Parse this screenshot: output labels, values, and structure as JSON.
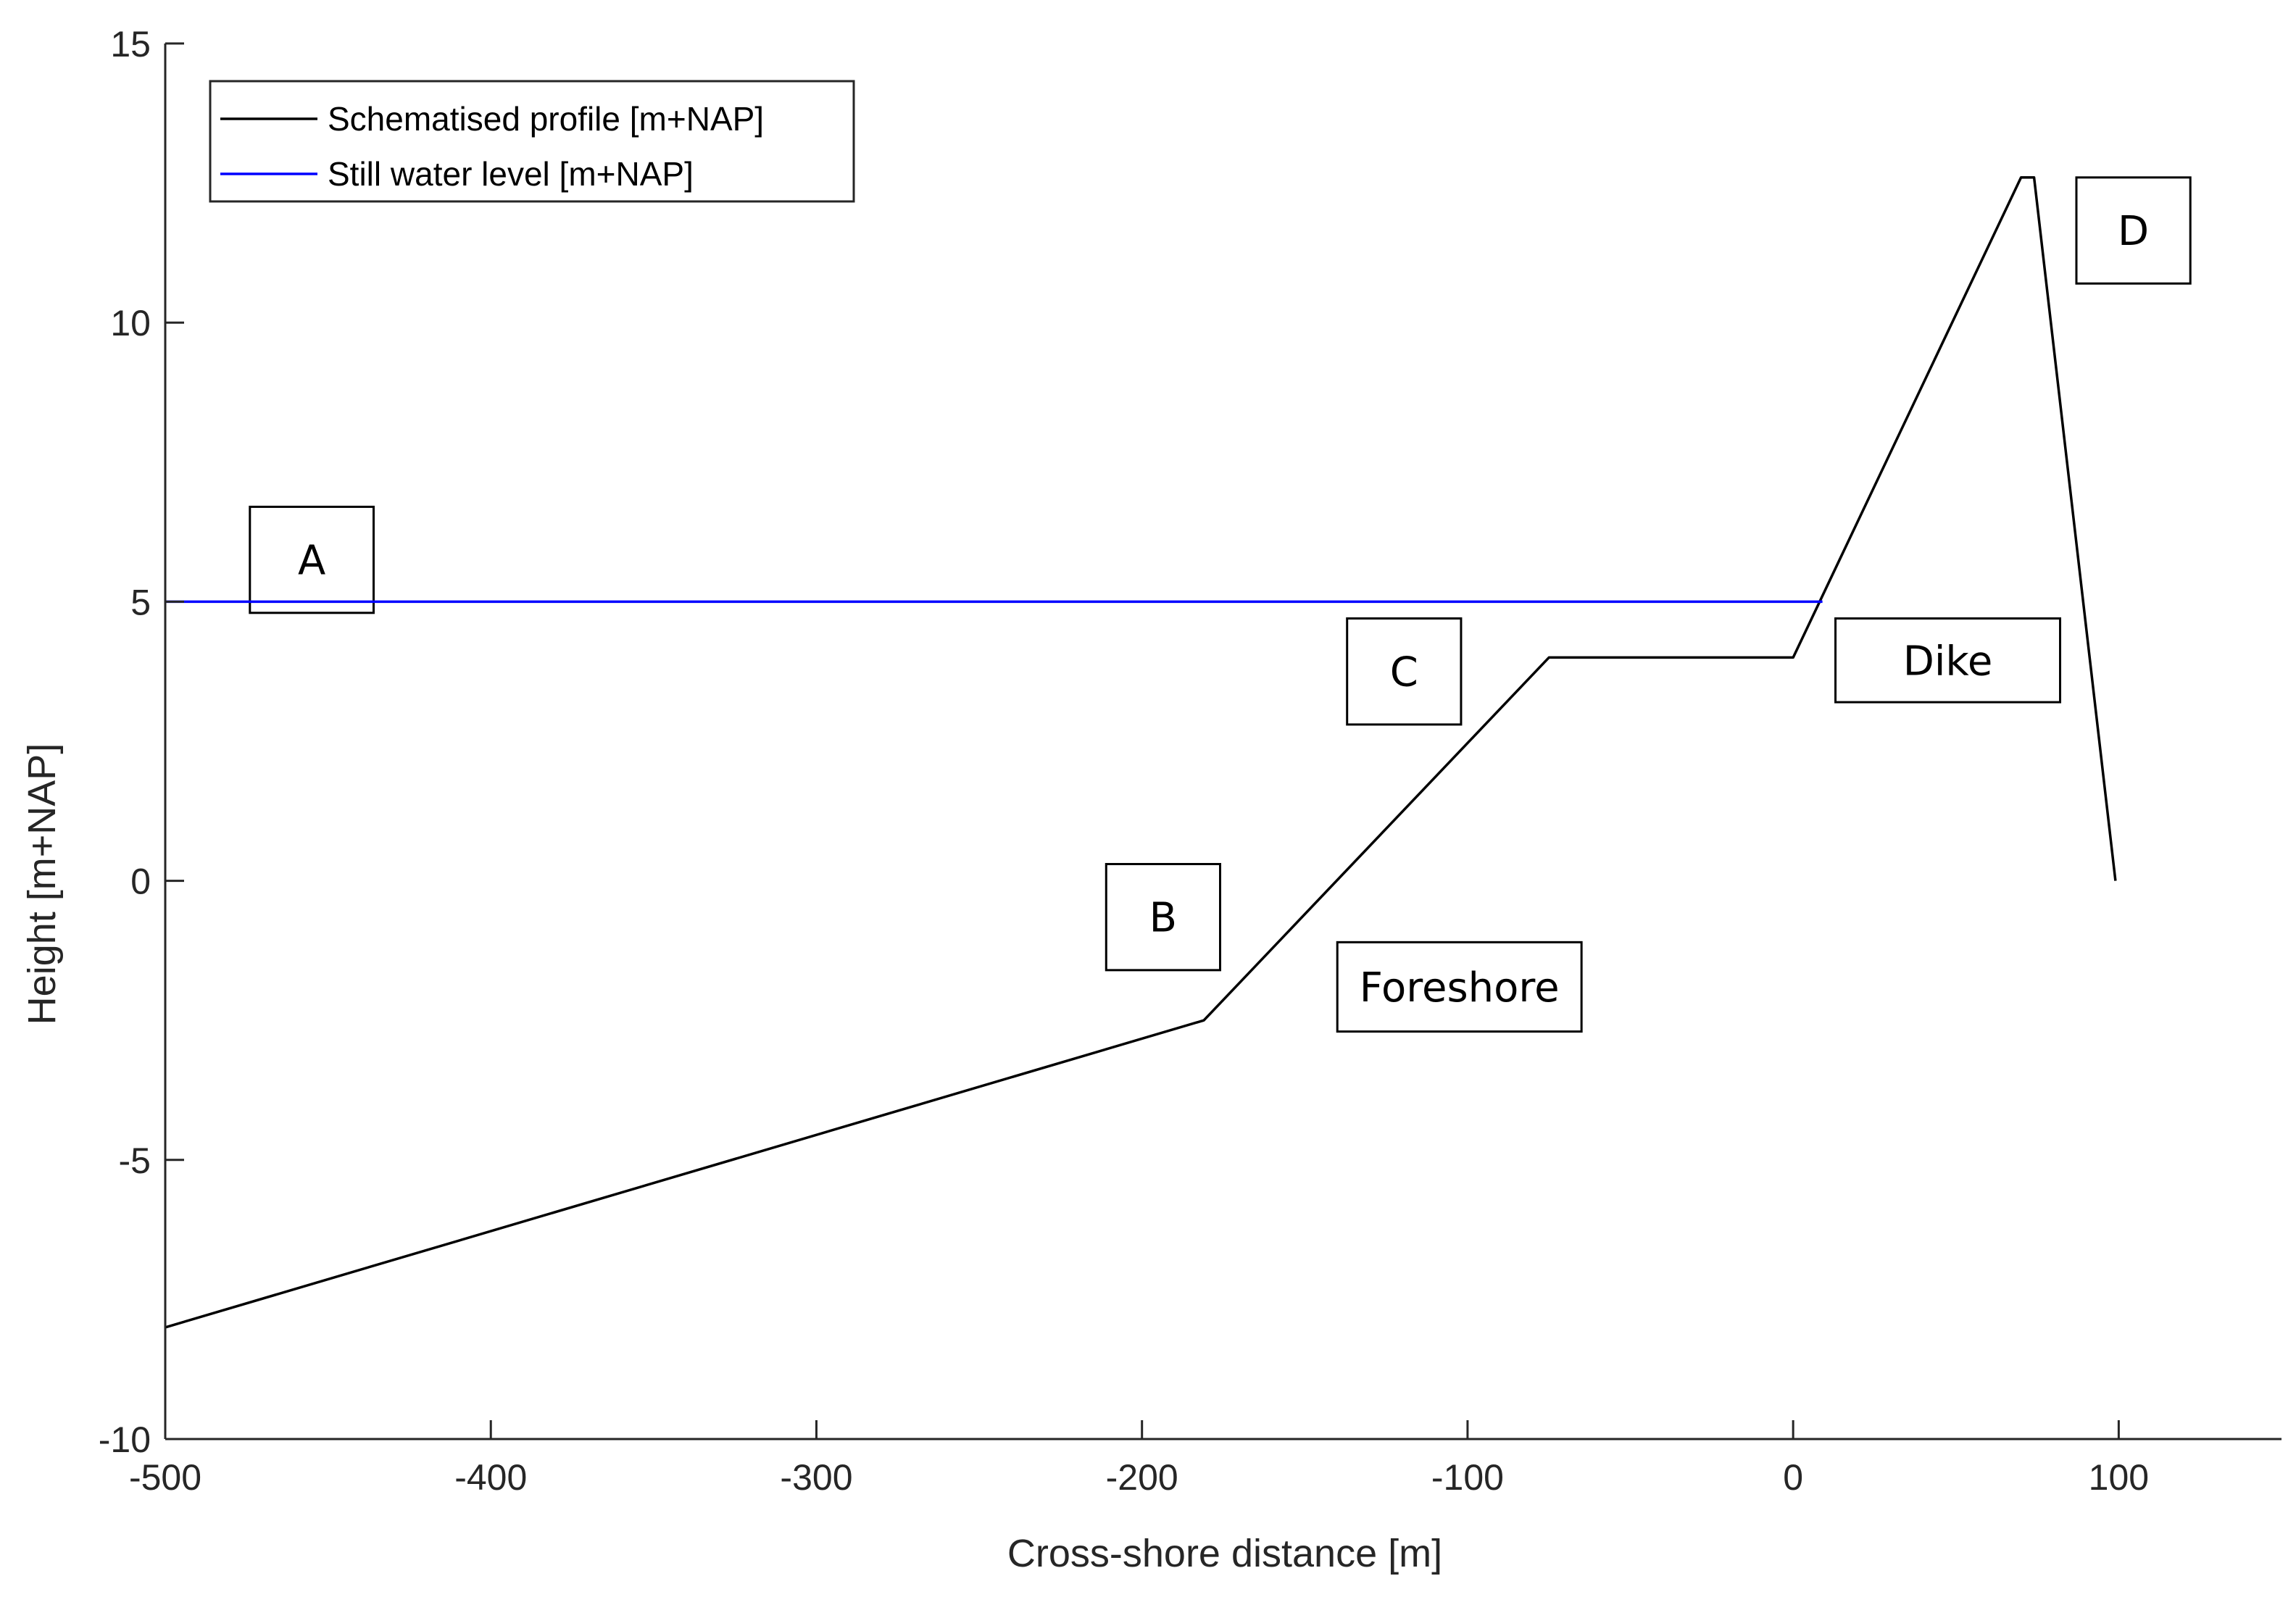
{
  "chart_data": {
    "type": "line",
    "xlabel": "Cross-shore distance [m]",
    "ylabel": "Height [m+NAP]",
    "xlim": [
      -500,
      150
    ],
    "ylim": [
      -10,
      15
    ],
    "xticks": [
      -500,
      -400,
      -300,
      -200,
      -100,
      0,
      100
    ],
    "yticks": [
      -10,
      -5,
      0,
      5,
      10,
      15
    ],
    "xtick_labels": [
      "-500",
      "-400",
      "-300",
      "-200",
      "-100",
      "0",
      "100"
    ],
    "ytick_labels": [
      "-10",
      "-5",
      "0",
      "5",
      "10",
      "15"
    ],
    "grid": false,
    "legend_position": "top-left",
    "series": [
      {
        "name": "Schematised profile [m+NAP]",
        "color": "#000000",
        "x": [
          -500,
          -181,
          -75,
          0,
          70,
          74,
          99
        ],
        "y": [
          -8,
          -2.5,
          4,
          4,
          12.6,
          12.6,
          0
        ]
      },
      {
        "name": "Still water level [m+NAP]",
        "color": "#0000ff",
        "x": [
          -500,
          9
        ],
        "y": [
          5,
          5
        ]
      }
    ],
    "annotations": [
      {
        "text": "A",
        "x": -474,
        "y": 4.8,
        "x2": -436,
        "y2": 6.7
      },
      {
        "text": "B",
        "x": -211,
        "y": -1.6,
        "x2": -176,
        "y2": 0.3
      },
      {
        "text": "C",
        "x": -137,
        "y": 2.8,
        "x2": -102,
        "y2": 4.7
      },
      {
        "text": "Foreshore",
        "x": -140,
        "y": -2.7,
        "x2": -65,
        "y2": -1.1
      },
      {
        "text": "Dike",
        "x": 13,
        "y": 3.2,
        "x2": 82,
        "y2": 4.7
      },
      {
        "text": "D",
        "x": 87,
        "y": 10.7,
        "x2": 122,
        "y2": 12.6
      }
    ]
  }
}
